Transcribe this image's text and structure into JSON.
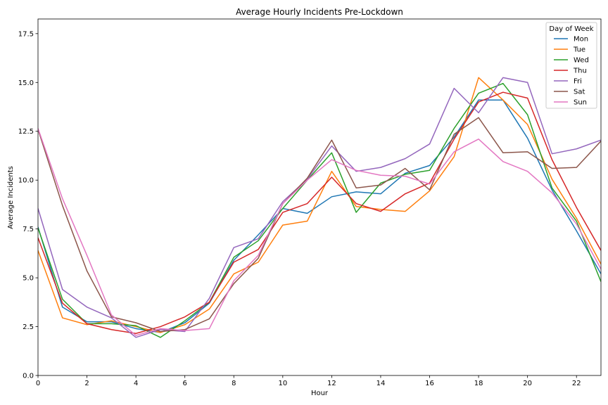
{
  "chart_data": {
    "type": "line",
    "title": "Average Hourly Incidents Pre-Lockdown",
    "xlabel": "Hour",
    "ylabel": "Average Incidents",
    "xlim": [
      0,
      23
    ],
    "ylim": [
      0,
      18.25
    ],
    "x_ticks": [
      0,
      2,
      4,
      6,
      8,
      10,
      12,
      14,
      16,
      18,
      20,
      22
    ],
    "x_tick_labels": [
      "0",
      "2",
      "4",
      "6",
      "8",
      "10",
      "12",
      "14",
      "16",
      "18",
      "20",
      "22"
    ],
    "y_ticks": [
      0,
      2.5,
      5,
      7.5,
      10,
      12.5,
      15,
      17.5
    ],
    "y_tick_labels": [
      "0.0",
      "2.5",
      "5.0",
      "7.5",
      "10.0",
      "12.5",
      "15.0",
      "17.5"
    ],
    "grid": false,
    "legend": {
      "title": "Day of Week",
      "placement": "top-right"
    },
    "x": [
      0,
      1,
      2,
      3,
      4,
      5,
      6,
      7,
      8,
      9,
      10,
      11,
      12,
      13,
      14,
      15,
      16,
      17,
      18,
      19,
      20,
      21,
      22,
      23
    ],
    "series": [
      {
        "name": "Mon",
        "color": "#1f77b4",
        "values": [
          7.6,
          3.5,
          2.75,
          2.75,
          2.4,
          2.2,
          2.7,
          3.7,
          5.9,
          7.2,
          8.55,
          8.3,
          9.15,
          9.4,
          9.3,
          10.35,
          10.75,
          12.2,
          14.1,
          14.1,
          12.15,
          9.5,
          7.4,
          5.2
        ]
      },
      {
        "name": "Tue",
        "color": "#ff7f0e",
        "values": [
          6.4,
          2.95,
          2.6,
          2.8,
          2.5,
          2.2,
          2.6,
          3.4,
          5.2,
          5.8,
          7.7,
          7.9,
          10.45,
          8.65,
          8.5,
          8.4,
          9.45,
          11.2,
          15.25,
          14.1,
          12.85,
          10.05,
          8.05,
          5.7
        ]
      },
      {
        "name": "Wed",
        "color": "#2ca02c",
        "values": [
          7.55,
          3.9,
          2.65,
          2.65,
          2.55,
          1.95,
          2.8,
          3.75,
          6.05,
          6.9,
          8.55,
          10.0,
          11.4,
          8.35,
          9.85,
          10.3,
          10.5,
          12.65,
          14.45,
          14.95,
          13.35,
          9.6,
          7.9,
          4.8
        ]
      },
      {
        "name": "Thu",
        "color": "#d62728",
        "values": [
          7.05,
          3.7,
          2.65,
          2.35,
          2.15,
          2.5,
          3.0,
          3.75,
          5.8,
          6.45,
          8.35,
          8.8,
          10.15,
          8.8,
          8.4,
          9.3,
          9.85,
          12.1,
          14.0,
          14.5,
          14.2,
          11.05,
          8.6,
          6.4
        ]
      },
      {
        "name": "Fri",
        "color": "#9467bd",
        "values": [
          8.55,
          4.4,
          3.5,
          2.95,
          1.95,
          2.35,
          2.25,
          3.95,
          6.55,
          7.0,
          8.9,
          10.05,
          11.75,
          10.45,
          10.65,
          11.1,
          11.85,
          14.7,
          13.45,
          15.25,
          15.0,
          11.35,
          11.6,
          12.05
        ]
      },
      {
        "name": "Sat",
        "color": "#8c564b",
        "values": [
          12.6,
          8.7,
          5.35,
          3.0,
          2.7,
          2.25,
          2.35,
          2.9,
          4.7,
          6.0,
          8.8,
          10.1,
          12.05,
          9.6,
          9.75,
          10.6,
          9.5,
          12.35,
          13.2,
          11.4,
          11.45,
          10.6,
          10.65,
          12.0
        ]
      },
      {
        "name": "Sun",
        "color": "#e377c2",
        "values": [
          12.65,
          9.05,
          6.15,
          3.1,
          2.05,
          2.4,
          2.3,
          2.4,
          4.85,
          6.15,
          8.8,
          10.0,
          11.05,
          10.5,
          10.25,
          10.2,
          9.8,
          11.45,
          12.1,
          10.95,
          10.45,
          9.35,
          7.75,
          5.45
        ]
      }
    ]
  }
}
